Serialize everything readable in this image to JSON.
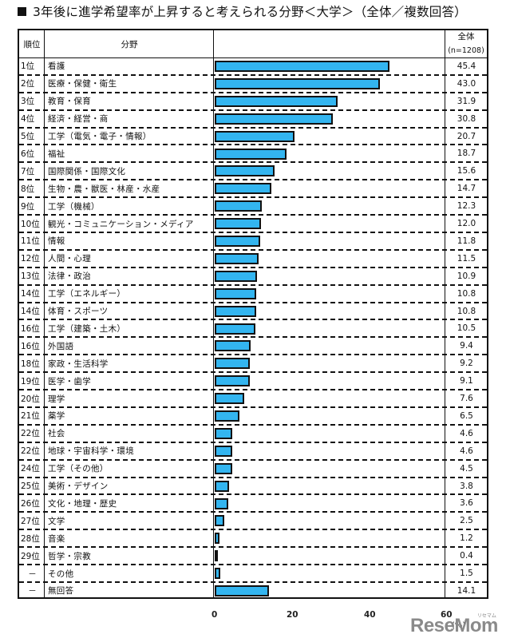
{
  "title": "3年後に進学希望率が上昇すると考えられる分野＜大学＞（全体／複数回答）",
  "header": {
    "rank": "順位",
    "field": "分野",
    "value": "全体",
    "n": "(n=1208)"
  },
  "axis": {
    "ticks": [
      "0",
      "20",
      "40",
      "60"
    ],
    "unit": "(%)"
  },
  "watermark": "ReseMom",
  "watermark_small": "リセマム",
  "chart_data": {
    "type": "bar",
    "orientation": "horizontal",
    "title": "3年後に進学希望率が上昇すると考えられる分野＜大学＞（全体／複数回答）",
    "xlabel": "(%)",
    "ylabel": "分野",
    "xlim": [
      0,
      60
    ],
    "xticks": [
      0,
      20,
      40,
      60
    ],
    "legend": "none",
    "grid": false,
    "series_name": "全体 (n=1208)",
    "bar_color": "#33b5f0",
    "ranks": [
      "1位",
      "2位",
      "3位",
      "4位",
      "5位",
      "6位",
      "7位",
      "8位",
      "9位",
      "10位",
      "11位",
      "12位",
      "13位",
      "14位",
      "14位",
      "16位",
      "16位",
      "18位",
      "19位",
      "20位",
      "21位",
      "22位",
      "22位",
      "24位",
      "25位",
      "26位",
      "27位",
      "28位",
      "29位",
      "－",
      "－"
    ],
    "categories": [
      "看護",
      "医療・保健・衛生",
      "教育・保育",
      "経済・経営・商",
      "工学（電気・電子・情報）",
      "福祉",
      "国際関係・国際文化",
      "生物・農・獣医・林産・水産",
      "工学（機械）",
      "観光・コミュニケーション・メディア",
      "情報",
      "人間・心理",
      "法律・政治",
      "工学（エネルギー）",
      "体育・スポーツ",
      "工学（建築・土木）",
      "外国語",
      "家政・生活科学",
      "医学・歯学",
      "理学",
      "薬学",
      "社会",
      "地球・宇宙科学・環境",
      "工学（その他）",
      "美術・デザイン",
      "文化・地理・歴史",
      "文学",
      "音楽",
      "哲学・宗教",
      "その他",
      "無回答"
    ],
    "values": [
      45.4,
      43.0,
      31.9,
      30.8,
      20.7,
      18.7,
      15.6,
      14.7,
      12.3,
      12.0,
      11.8,
      11.5,
      10.9,
      10.8,
      10.8,
      10.5,
      9.4,
      9.2,
      9.1,
      7.6,
      6.5,
      4.6,
      4.6,
      4.5,
      3.8,
      3.6,
      2.5,
      1.2,
      0.4,
      1.5,
      14.1
    ],
    "value_labels": [
      "45.4",
      "43.0",
      "31.9",
      "30.8",
      "20.7",
      "18.7",
      "15.6",
      "14.7",
      "12.3",
      "12.0",
      "11.8",
      "11.5",
      "10.9",
      "10.8",
      "10.8",
      "10.5",
      "9.4",
      "9.2",
      "9.1",
      "7.6",
      "6.5",
      "4.6",
      "4.6",
      "4.5",
      "3.8",
      "3.6",
      "2.5",
      "1.2",
      "0.4",
      "1.5",
      "14.1"
    ]
  }
}
